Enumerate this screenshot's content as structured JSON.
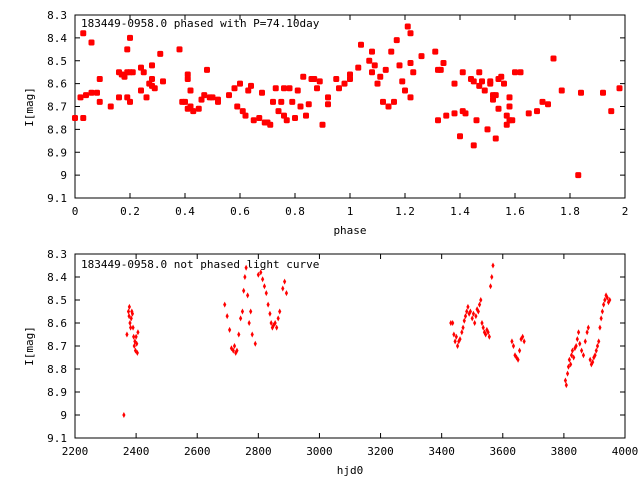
{
  "chart_data": [
    {
      "type": "scatter",
      "title": "183449-0958.0 phased with P=74.10day",
      "xlabel": "phase",
      "ylabel": "I[mag]",
      "xlim": [
        0,
        2
      ],
      "ylim": [
        9.1,
        8.3
      ],
      "y_inverted": true,
      "grid": false,
      "marker_color": "#ff0000",
      "marker": "filled-octagon",
      "x_ticks": [
        "0",
        "0.2",
        "0.4",
        "0.6",
        "0.8",
        "1",
        "1.2",
        "1.4",
        "1.6",
        "1.8",
        "2"
      ],
      "y_ticks": [
        "8.3",
        "8.4",
        "8.5",
        "8.6",
        "8.7",
        "8.8",
        "8.9",
        "9",
        "9.1"
      ],
      "points": [
        [
          0.0,
          8.75
        ],
        [
          0.03,
          8.75
        ],
        [
          0.02,
          8.66
        ],
        [
          0.04,
          8.65
        ],
        [
          0.06,
          8.64
        ],
        [
          0.03,
          8.38
        ],
        [
          0.06,
          8.42
        ],
        [
          0.08,
          8.64
        ],
        [
          0.09,
          8.58
        ],
        [
          0.09,
          8.68
        ],
        [
          0.13,
          8.7
        ],
        [
          0.16,
          8.55
        ],
        [
          0.17,
          8.56
        ],
        [
          0.18,
          8.57
        ],
        [
          0.19,
          8.55
        ],
        [
          0.16,
          8.66
        ],
        [
          0.2,
          8.55
        ],
        [
          0.19,
          8.66
        ],
        [
          0.2,
          8.4
        ],
        [
          0.19,
          8.45
        ],
        [
          0.21,
          8.55
        ],
        [
          0.2,
          8.68
        ],
        [
          0.24,
          8.53
        ],
        [
          0.25,
          8.55
        ],
        [
          0.24,
          8.63
        ],
        [
          0.26,
          8.66
        ],
        [
          0.27,
          8.6
        ],
        [
          0.28,
          8.58
        ],
        [
          0.28,
          8.61
        ],
        [
          0.29,
          8.62
        ],
        [
          0.28,
          8.52
        ],
        [
          0.31,
          8.47
        ],
        [
          0.32,
          8.59
        ],
        [
          0.38,
          8.45
        ],
        [
          0.39,
          8.68
        ],
        [
          0.4,
          8.68
        ],
        [
          0.41,
          8.56
        ],
        [
          0.41,
          8.58
        ],
        [
          0.41,
          8.71
        ],
        [
          0.42,
          8.7
        ],
        [
          0.43,
          8.72
        ],
        [
          0.42,
          8.63
        ],
        [
          0.45,
          8.71
        ],
        [
          0.46,
          8.67
        ],
        [
          0.47,
          8.65
        ],
        [
          0.48,
          8.54
        ],
        [
          0.49,
          8.66
        ],
        [
          0.5,
          8.66
        ],
        [
          0.52,
          8.67
        ],
        [
          0.52,
          8.68
        ],
        [
          0.56,
          8.65
        ],
        [
          0.58,
          8.62
        ],
        [
          0.59,
          8.7
        ],
        [
          0.6,
          8.6
        ],
        [
          0.61,
          8.72
        ],
        [
          0.62,
          8.74
        ],
        [
          0.63,
          8.63
        ],
        [
          0.64,
          8.61
        ],
        [
          0.65,
          8.76
        ],
        [
          0.67,
          8.75
        ],
        [
          0.68,
          8.64
        ],
        [
          0.69,
          8.77
        ],
        [
          0.7,
          8.77
        ],
        [
          0.71,
          8.78
        ],
        [
          0.72,
          8.68
        ],
        [
          0.73,
          8.62
        ],
        [
          0.74,
          8.72
        ],
        [
          0.75,
          8.68
        ],
        [
          0.76,
          8.62
        ],
        [
          0.76,
          8.74
        ],
        [
          0.77,
          8.76
        ],
        [
          0.78,
          8.62
        ],
        [
          0.79,
          8.68
        ],
        [
          0.8,
          8.75
        ],
        [
          0.81,
          8.63
        ],
        [
          0.82,
          8.7
        ],
        [
          0.83,
          8.57
        ],
        [
          0.84,
          8.74
        ],
        [
          0.85,
          8.69
        ],
        [
          0.86,
          8.58
        ],
        [
          0.87,
          8.58
        ],
        [
          0.88,
          8.62
        ],
        [
          0.89,
          8.59
        ],
        [
          0.9,
          8.78
        ],
        [
          0.92,
          8.69
        ],
        [
          0.92,
          8.66
        ],
        [
          0.95,
          8.58
        ],
        [
          0.96,
          8.62
        ],
        [
          0.98,
          8.6
        ],
        [
          1.0,
          8.58
        ],
        [
          1.0,
          8.56
        ],
        [
          1.03,
          8.53
        ],
        [
          1.04,
          8.43
        ],
        [
          1.07,
          8.5
        ],
        [
          1.08,
          8.46
        ],
        [
          1.08,
          8.55
        ],
        [
          1.09,
          8.52
        ],
        [
          1.1,
          8.6
        ],
        [
          1.11,
          8.57
        ],
        [
          1.12,
          8.68
        ],
        [
          1.13,
          8.54
        ],
        [
          1.14,
          8.7
        ],
        [
          1.15,
          8.46
        ],
        [
          1.16,
          8.68
        ],
        [
          1.17,
          8.41
        ],
        [
          1.18,
          8.52
        ],
        [
          1.19,
          8.59
        ],
        [
          1.2,
          8.63
        ],
        [
          1.21,
          8.35
        ],
        [
          1.22,
          8.38
        ],
        [
          1.22,
          8.66
        ],
        [
          1.22,
          8.51
        ],
        [
          1.23,
          8.55
        ],
        [
          1.26,
          8.48
        ],
        [
          1.31,
          8.46
        ],
        [
          1.32,
          8.76
        ],
        [
          1.32,
          8.54
        ],
        [
          1.33,
          8.54
        ],
        [
          1.34,
          8.51
        ],
        [
          1.35,
          8.74
        ],
        [
          1.38,
          8.6
        ],
        [
          1.38,
          8.73
        ],
        [
          1.4,
          8.83
        ],
        [
          1.41,
          8.72
        ],
        [
          1.41,
          8.55
        ],
        [
          1.42,
          8.73
        ],
        [
          1.44,
          8.58
        ],
        [
          1.45,
          8.87
        ],
        [
          1.45,
          8.59
        ],
        [
          1.46,
          8.76
        ],
        [
          1.47,
          8.55
        ],
        [
          1.47,
          8.61
        ],
        [
          1.48,
          8.59
        ],
        [
          1.49,
          8.63
        ],
        [
          1.5,
          8.8
        ],
        [
          1.51,
          8.6
        ],
        [
          1.51,
          8.59
        ],
        [
          1.52,
          8.65
        ],
        [
          1.52,
          8.67
        ],
        [
          1.53,
          8.65
        ],
        [
          1.53,
          8.84
        ],
        [
          1.54,
          8.71
        ],
        [
          1.54,
          8.58
        ],
        [
          1.55,
          8.57
        ],
        [
          1.56,
          8.6
        ],
        [
          1.57,
          8.74
        ],
        [
          1.57,
          8.78
        ],
        [
          1.58,
          8.76
        ],
        [
          1.58,
          8.7
        ],
        [
          1.58,
          8.66
        ],
        [
          1.59,
          8.76
        ],
        [
          1.6,
          8.55
        ],
        [
          1.62,
          8.55
        ],
        [
          1.65,
          8.73
        ],
        [
          1.68,
          8.72
        ],
        [
          1.7,
          8.68
        ],
        [
          1.72,
          8.69
        ],
        [
          1.74,
          8.49
        ],
        [
          1.77,
          8.63
        ],
        [
          1.83,
          9.0
        ],
        [
          1.84,
          8.64
        ],
        [
          1.92,
          8.64
        ],
        [
          1.95,
          8.72
        ],
        [
          1.98,
          8.62
        ]
      ]
    },
    {
      "type": "scatter",
      "title": "183449-0958.0 not phased light curve",
      "xlabel": "hjd0",
      "ylabel": "I[mag]",
      "xlim": [
        2200,
        4000
      ],
      "ylim": [
        9.1,
        8.3
      ],
      "y_inverted": true,
      "grid": false,
      "marker_color": "#ff0000",
      "marker": "small-diamond",
      "x_ticks": [
        "2200",
        "2400",
        "2600",
        "2800",
        "3000",
        "3200",
        "3400",
        "3600",
        "3800",
        "4000"
      ],
      "y_ticks": [
        "8.3",
        "8.4",
        "8.5",
        "8.6",
        "8.7",
        "8.8",
        "8.9",
        "9",
        "9.1"
      ],
      "points": [
        [
          2360,
          9.0
        ],
        [
          2370,
          8.65
        ],
        [
          2375,
          8.55
        ],
        [
          2377,
          8.57
        ],
        [
          2378,
          8.53
        ],
        [
          2380,
          8.6
        ],
        [
          2382,
          8.62
        ],
        [
          2384,
          8.58
        ],
        [
          2386,
          8.55
        ],
        [
          2388,
          8.56
        ],
        [
          2390,
          8.62
        ],
        [
          2392,
          8.66
        ],
        [
          2394,
          8.7
        ],
        [
          2396,
          8.68
        ],
        [
          2398,
          8.72
        ],
        [
          2400,
          8.66
        ],
        [
          2402,
          8.69
        ],
        [
          2404,
          8.73
        ],
        [
          2406,
          8.64
        ],
        [
          2690,
          8.52
        ],
        [
          2698,
          8.57
        ],
        [
          2706,
          8.63
        ],
        [
          2712,
          8.71
        ],
        [
          2718,
          8.72
        ],
        [
          2722,
          8.7
        ],
        [
          2726,
          8.73
        ],
        [
          2730,
          8.72
        ],
        [
          2736,
          8.65
        ],
        [
          2742,
          8.58
        ],
        [
          2748,
          8.55
        ],
        [
          2752,
          8.46
        ],
        [
          2756,
          8.4
        ],
        [
          2760,
          8.36
        ],
        [
          2765,
          8.48
        ],
        [
          2770,
          8.6
        ],
        [
          2775,
          8.55
        ],
        [
          2780,
          8.65
        ],
        [
          2790,
          8.69
        ],
        [
          2800,
          8.39
        ],
        [
          2808,
          8.38
        ],
        [
          2814,
          8.41
        ],
        [
          2820,
          8.44
        ],
        [
          2826,
          8.47
        ],
        [
          2832,
          8.52
        ],
        [
          2838,
          8.56
        ],
        [
          2842,
          8.6
        ],
        [
          2846,
          8.62
        ],
        [
          2850,
          8.61
        ],
        [
          2855,
          8.6
        ],
        [
          2860,
          8.62
        ],
        [
          2865,
          8.58
        ],
        [
          2870,
          8.55
        ],
        [
          2880,
          8.45
        ],
        [
          2886,
          8.42
        ],
        [
          2892,
          8.47
        ],
        [
          3430,
          8.6
        ],
        [
          3436,
          8.6
        ],
        [
          3440,
          8.65
        ],
        [
          3444,
          8.68
        ],
        [
          3448,
          8.66
        ],
        [
          3452,
          8.7
        ],
        [
          3456,
          8.68
        ],
        [
          3460,
          8.67
        ],
        [
          3466,
          8.64
        ],
        [
          3470,
          8.62
        ],
        [
          3474,
          8.59
        ],
        [
          3478,
          8.57
        ],
        [
          3482,
          8.55
        ],
        [
          3486,
          8.53
        ],
        [
          3490,
          8.56
        ],
        [
          3494,
          8.55
        ],
        [
          3500,
          8.58
        ],
        [
          3504,
          8.56
        ],
        [
          3508,
          8.6
        ],
        [
          3512,
          8.57
        ],
        [
          3516,
          8.54
        ],
        [
          3520,
          8.55
        ],
        [
          3524,
          8.52
        ],
        [
          3528,
          8.5
        ],
        [
          3532,
          8.6
        ],
        [
          3536,
          8.62
        ],
        [
          3540,
          8.64
        ],
        [
          3544,
          8.65
        ],
        [
          3548,
          8.63
        ],
        [
          3552,
          8.64
        ],
        [
          3556,
          8.66
        ],
        [
          3560,
          8.44
        ],
        [
          3564,
          8.4
        ],
        [
          3568,
          8.35
        ],
        [
          3630,
          8.68
        ],
        [
          3635,
          8.7
        ],
        [
          3640,
          8.74
        ],
        [
          3645,
          8.75
        ],
        [
          3650,
          8.76
        ],
        [
          3655,
          8.72
        ],
        [
          3660,
          8.67
        ],
        [
          3665,
          8.66
        ],
        [
          3670,
          8.68
        ],
        [
          3805,
          8.85
        ],
        [
          3808,
          8.87
        ],
        [
          3812,
          8.82
        ],
        [
          3815,
          8.79
        ],
        [
          3818,
          8.76
        ],
        [
          3822,
          8.78
        ],
        [
          3825,
          8.74
        ],
        [
          3828,
          8.72
        ],
        [
          3832,
          8.75
        ],
        [
          3836,
          8.71
        ],
        [
          3840,
          8.7
        ],
        [
          3844,
          8.67
        ],
        [
          3848,
          8.64
        ],
        [
          3852,
          8.69
        ],
        [
          3858,
          8.72
        ],
        [
          3864,
          8.74
        ],
        [
          3870,
          8.68
        ],
        [
          3876,
          8.64
        ],
        [
          3880,
          8.62
        ],
        [
          3886,
          8.76
        ],
        [
          3890,
          8.78
        ],
        [
          3894,
          8.77
        ],
        [
          3898,
          8.75
        ],
        [
          3902,
          8.74
        ],
        [
          3906,
          8.72
        ],
        [
          3910,
          8.7
        ],
        [
          3914,
          8.68
        ],
        [
          3918,
          8.62
        ],
        [
          3922,
          8.58
        ],
        [
          3926,
          8.55
        ],
        [
          3930,
          8.52
        ],
        [
          3934,
          8.5
        ],
        [
          3938,
          8.48
        ],
        [
          3942,
          8.49
        ],
        [
          3946,
          8.51
        ],
        [
          3950,
          8.5
        ]
      ]
    }
  ]
}
